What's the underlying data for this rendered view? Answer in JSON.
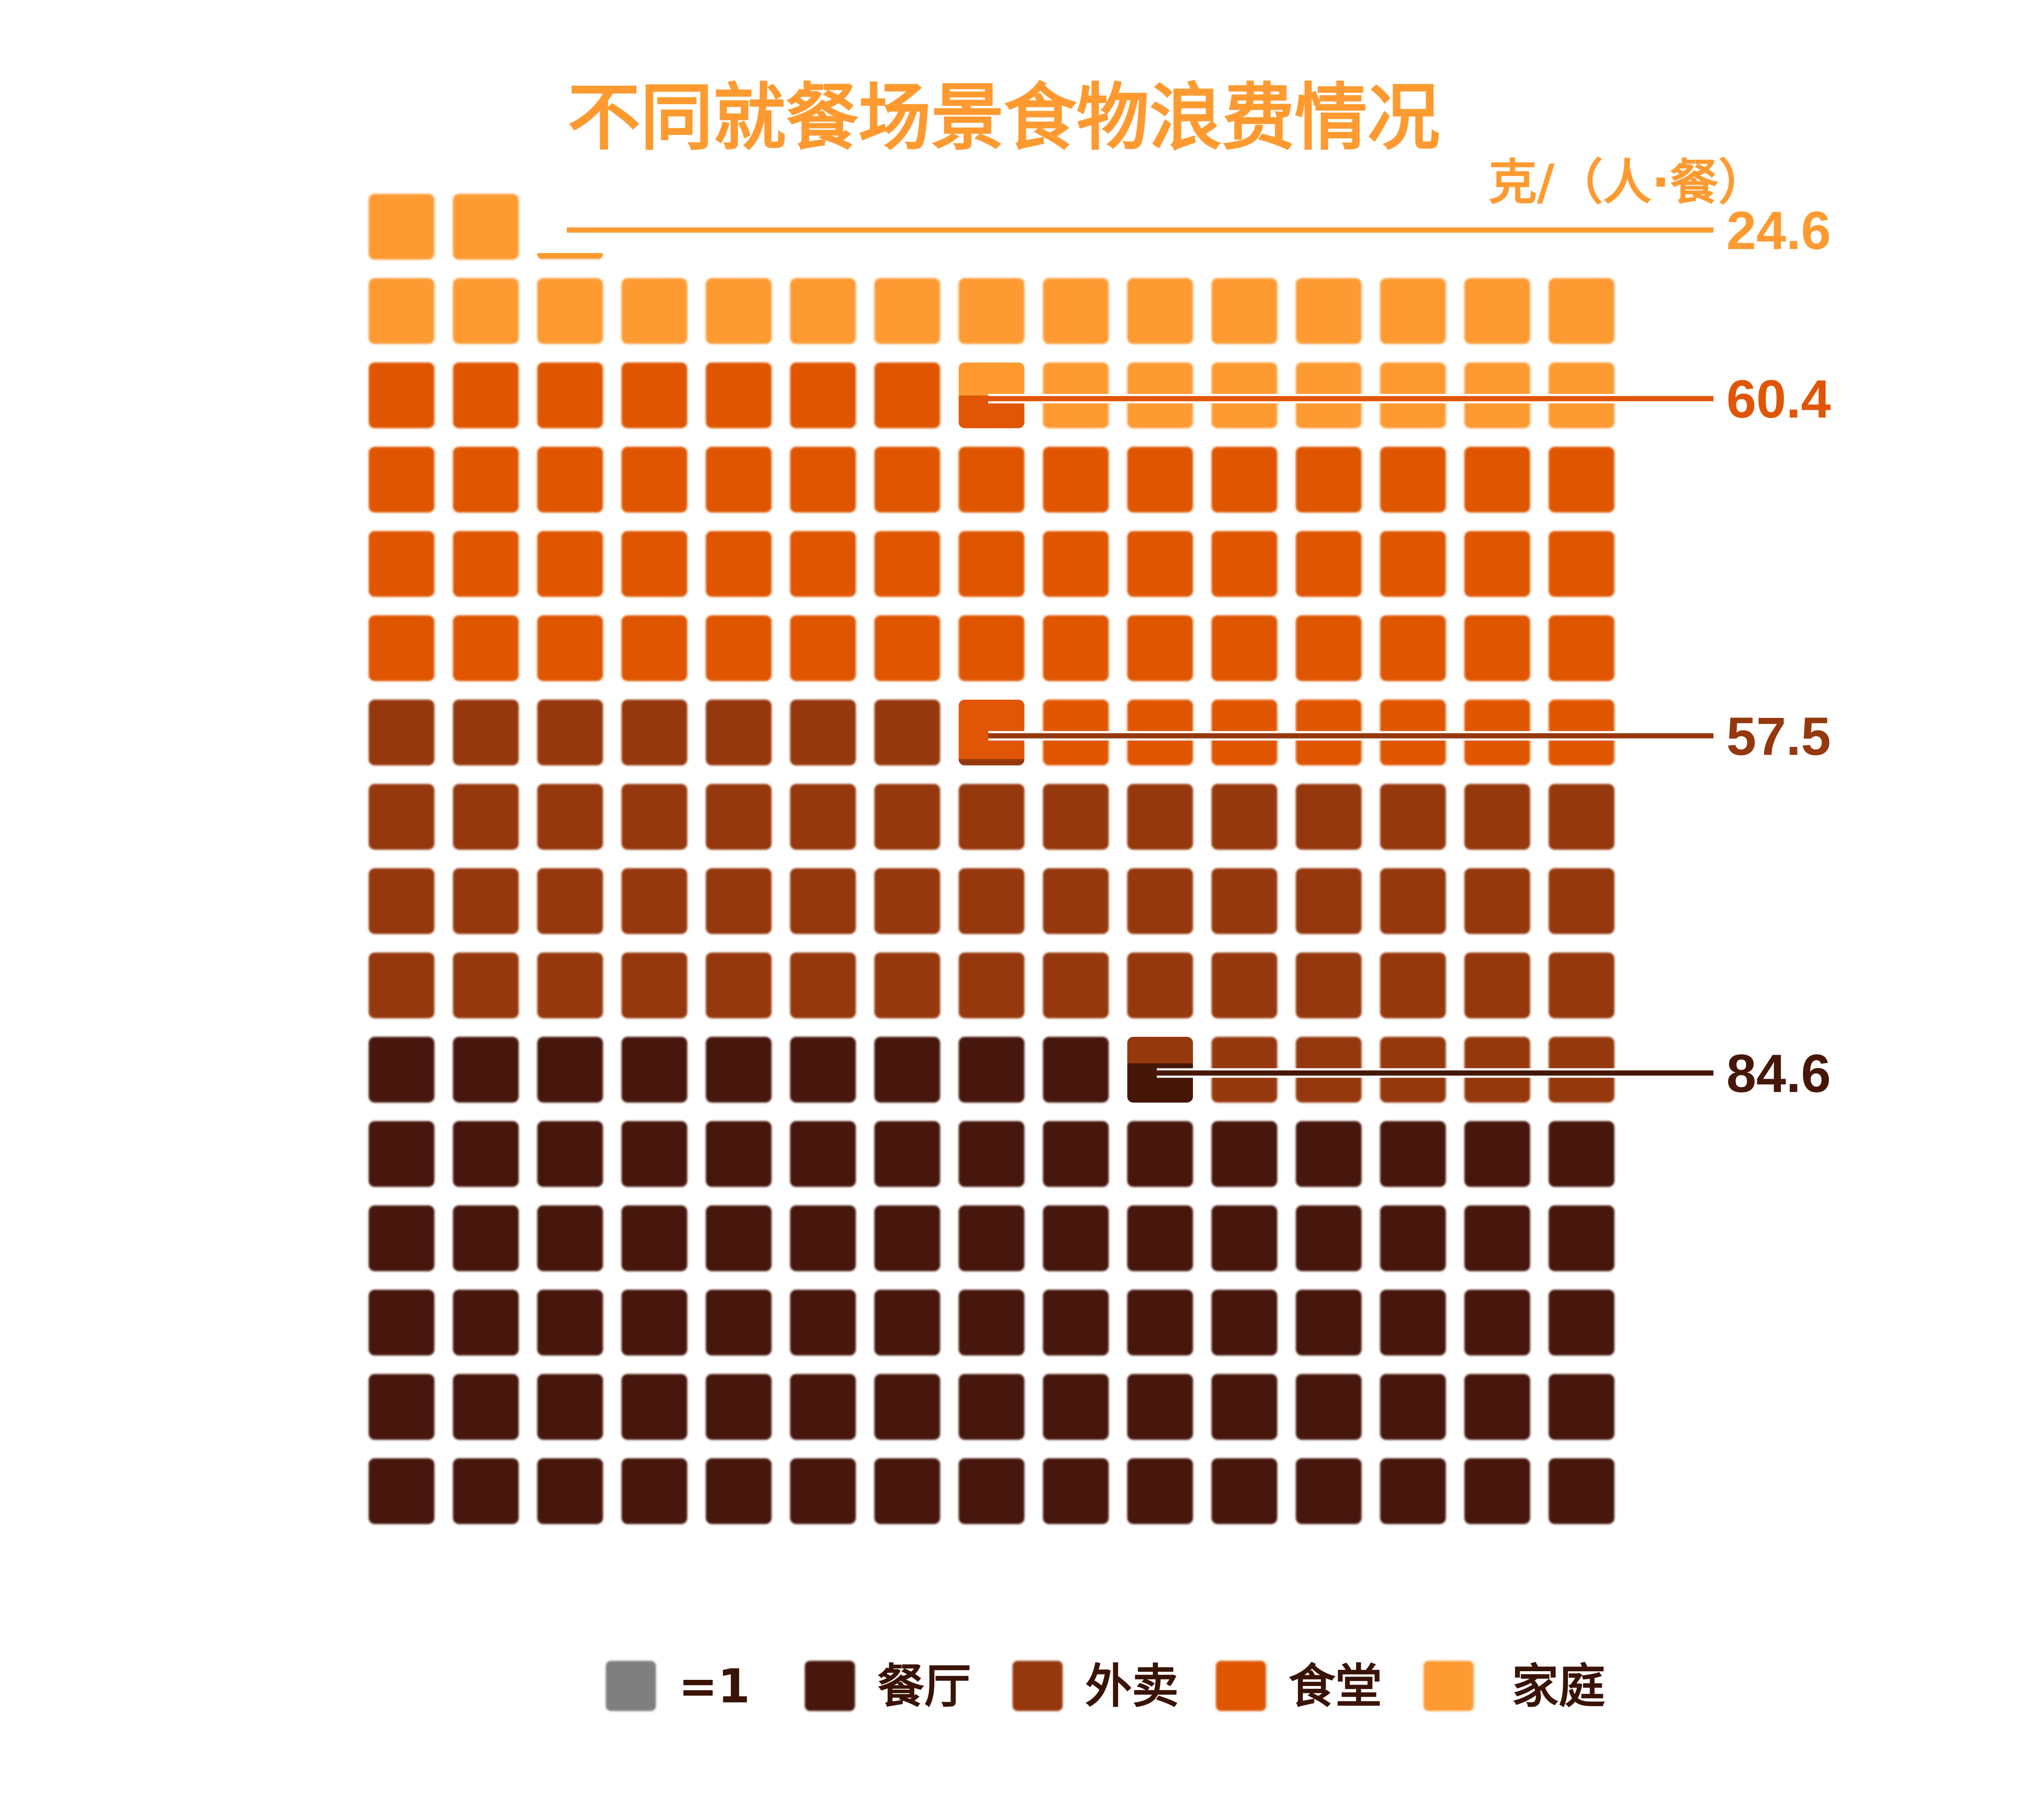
{
  "chart_data": {
    "type": "waffle",
    "title": "不同就餐场景食物浪费情况",
    "unit": "克/（人·餐）",
    "unit_per_square": 1,
    "grid_columns": 15,
    "stacking_order": "bottom-up",
    "series": [
      {
        "name": "餐厅",
        "value": 84.6,
        "label": "84.6",
        "color": "#461707"
      },
      {
        "name": "外卖",
        "value": 57.5,
        "label": "57.5",
        "color": "#96380d"
      },
      {
        "name": "食堂",
        "value": 60.4,
        "label": "60.4",
        "color": "#e05606"
      },
      {
        "name": "家庭",
        "value": 24.6,
        "label": "24.6",
        "color": "#fe9a30"
      }
    ],
    "legend": {
      "placement": "bottom",
      "unit_label": "=1",
      "unit_color": "#7f7f7f"
    }
  }
}
